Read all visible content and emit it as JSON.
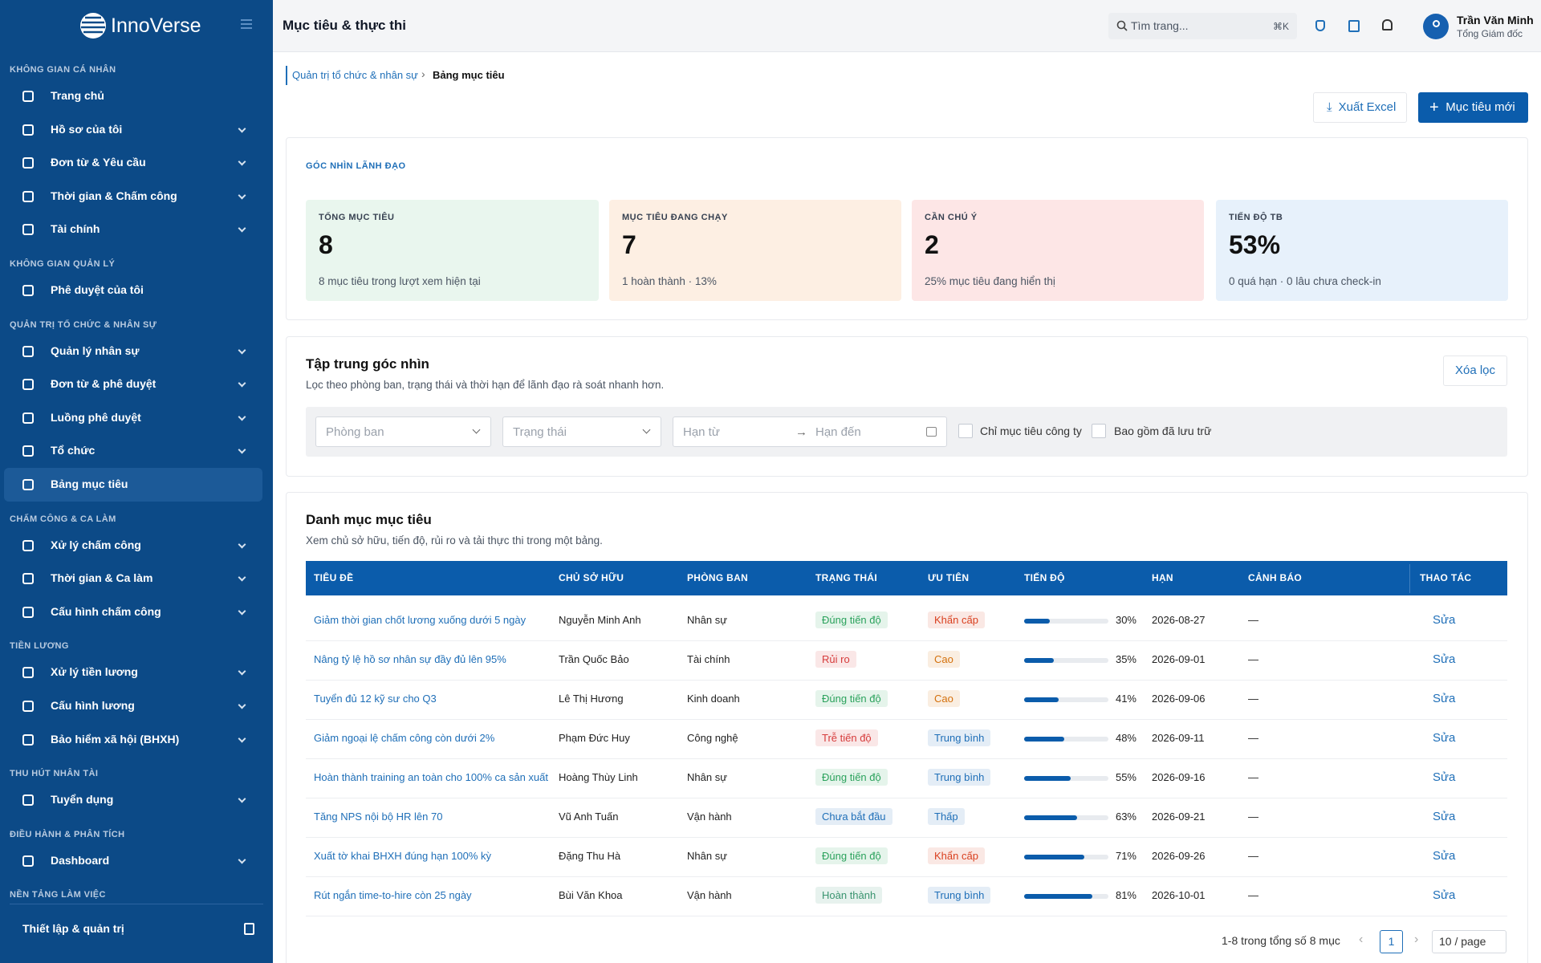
{
  "sidebar": {
    "brand": "InnoVerse",
    "sections": [
      {
        "label": "KHÔNG GIAN CÁ NHÂN",
        "items": [
          {
            "label": "Trang chủ",
            "has_submenu": false
          },
          {
            "label": "Hồ sơ của tôi",
            "has_submenu": true
          },
          {
            "label": "Đơn từ & Yêu cầu",
            "has_submenu": true
          },
          {
            "label": "Thời gian & Chấm công",
            "has_submenu": true
          },
          {
            "label": "Tài chính",
            "has_submenu": true
          }
        ]
      },
      {
        "label": "KHÔNG GIAN QUẢN LÝ",
        "items": [
          {
            "label": "Phê duyệt của tôi",
            "has_submenu": false
          }
        ]
      },
      {
        "label": "QUẢN TRỊ TỔ CHỨC & NHÂN SỰ",
        "items": [
          {
            "label": "Quản lý nhân sự",
            "has_submenu": true
          },
          {
            "label": "Đơn từ & phê duyệt",
            "has_submenu": true
          },
          {
            "label": "Luồng phê duyệt",
            "has_submenu": true
          },
          {
            "label": "Tổ chức",
            "has_submenu": true
          },
          {
            "label": "Bảng mục tiêu",
            "has_submenu": false,
            "active": true
          }
        ]
      },
      {
        "label": "CHẤM CÔNG & CA LÀM",
        "items": [
          {
            "label": "Xử lý chấm công",
            "has_submenu": true
          },
          {
            "label": "Thời gian & Ca làm",
            "has_submenu": true
          },
          {
            "label": "Cấu hình chấm công",
            "has_submenu": true
          }
        ]
      },
      {
        "label": "TIỀN LƯƠNG",
        "items": [
          {
            "label": "Xử lý tiền lương",
            "has_submenu": true
          },
          {
            "label": "Cấu hình lương",
            "has_submenu": true
          },
          {
            "label": "Bảo hiểm xã hội (BHXH)",
            "has_submenu": true
          }
        ]
      },
      {
        "label": "THU HÚT NHÂN TÀI",
        "items": [
          {
            "label": "Tuyển dụng",
            "has_submenu": true
          }
        ]
      },
      {
        "label": "ĐIỀU HÀNH & PHÂN TÍCH",
        "items": [
          {
            "label": "Dashboard",
            "has_submenu": true
          }
        ]
      },
      {
        "label": "NỀN TẢNG LÀM VIỆC",
        "items": []
      }
    ],
    "footer": "Thiết lập & quản trị"
  },
  "header": {
    "title": "Mục tiêu & thực thi",
    "search": "Tìm trang...",
    "shortcut": "⌘K",
    "user_name": "Trần Văn Minh",
    "user_role": "Tổng Giám đốc"
  },
  "breadcrumb": [
    "Quản trị tổ chức & nhân sự",
    "Bảng mục tiêu"
  ],
  "actions": {
    "export": "Xuất Excel",
    "create": "Mục tiêu mới"
  },
  "overview": {
    "title": "GÓC NHÌN LÃNH ĐẠO",
    "kpis": [
      {
        "label": "TỔNG MỤC TIÊU",
        "value": "8",
        "note": "8 mục tiêu trong lượt xem hiện tại",
        "color": "#e9f6ee"
      },
      {
        "label": "MỤC TIÊU ĐANG CHẠY",
        "value": "7",
        "note": "1 hoàn thành · 13%",
        "color": "#fdefe3"
      },
      {
        "label": "CẦN CHÚ Ý",
        "value": "2",
        "note": "25% mục tiêu đang hiển thị",
        "color": "#fde6e6"
      },
      {
        "label": "TIẾN ĐỘ TB",
        "value": "53%",
        "note": "0 quá hạn · 0 lâu chưa check-in",
        "color": "#e7f1fb"
      }
    ]
  },
  "filters": {
    "title": "Tập trung góc nhìn",
    "subtitle": "Lọc theo phòng ban, trạng thái và thời hạn để lãnh đạo rà soát nhanh hơn.",
    "clear": "Xóa lọc",
    "department": "Phòng ban",
    "status": "Trạng thái",
    "date_from": "Hạn từ",
    "date_to": "Hạn đến",
    "company_only": "Chỉ mục tiêu công ty",
    "include_archived": "Bao gồm đã lưu trữ"
  },
  "table": {
    "title": "Danh mục mục tiêu",
    "subtitle": "Xem chủ sở hữu, tiến độ, rủi ro và tải thực thi trong một bảng.",
    "columns": [
      "TIÊU ĐỀ",
      "CHỦ SỞ HỮU",
      "PHÒNG BAN",
      "TRẠNG THÁI",
      "ƯU TIÊN",
      "TIẾN ĐỘ",
      "HẠN",
      "CẢNH BÁO",
      "THAO TÁC"
    ],
    "rows": [
      {
        "title": "Giảm thời gian chốt lương xuống dưới 5 ngày",
        "owner": "Nguyễn Minh Anh",
        "department": "Nhân sự",
        "status": "Đúng tiến độ",
        "status_color": "#2ba25c",
        "priority": "Khẩn cấp",
        "priority_color": "#d9401f",
        "progress": 30,
        "progress_label": "30%",
        "due": "2026-08-27",
        "warning": "—",
        "action": "Sửa"
      },
      {
        "title": "Nâng tỷ lệ hồ sơ nhân sự đầy đủ lên 95%",
        "owner": "Trần Quốc Bảo",
        "department": "Tài chính",
        "status": "Rủi ro",
        "status_color": "#d63b3b",
        "priority": "Cao",
        "priority_color": "#d4700c",
        "progress": 35,
        "progress_label": "35%",
        "due": "2026-09-01",
        "warning": "—",
        "action": "Sửa"
      },
      {
        "title": "Tuyển đủ 12 kỹ sư cho Q3",
        "owner": "Lê Thị Hương",
        "department": "Kinh doanh",
        "status": "Đúng tiến độ",
        "status_color": "#2ba25c",
        "priority": "Cao",
        "priority_color": "#d4700c",
        "progress": 41,
        "progress_label": "41%",
        "due": "2026-09-06",
        "warning": "—",
        "action": "Sửa"
      },
      {
        "title": "Giảm ngoại lệ chấm công còn dưới 2%",
        "owner": "Phạm Đức Huy",
        "department": "Công nghệ",
        "status": "Trễ tiến độ",
        "status_color": "#d63b3b",
        "priority": "Trung bình",
        "priority_color": "#1f6fb8",
        "progress": 48,
        "progress_label": "48%",
        "due": "2026-09-11",
        "warning": "—",
        "action": "Sửa"
      },
      {
        "title": "Hoàn thành training an toàn cho 100% ca sản xuất",
        "owner": "Hoàng Thùy Linh",
        "department": "Nhân sự",
        "status": "Đúng tiến độ",
        "status_color": "#2ba25c",
        "priority": "Trung bình",
        "priority_color": "#1f6fb8",
        "progress": 55,
        "progress_label": "55%",
        "due": "2026-09-16",
        "warning": "—",
        "action": "Sửa"
      },
      {
        "title": "Tăng NPS nội bộ HR lên 70",
        "owner": "Vũ Anh Tuấn",
        "department": "Vận hành",
        "status": "Chưa bắt đầu",
        "status_color": "#1f6fb8",
        "priority": "Thấp",
        "priority_color": "#1f6fb8",
        "progress": 63,
        "progress_label": "63%",
        "due": "2026-09-21",
        "warning": "—",
        "action": "Sửa"
      },
      {
        "title": "Xuất tờ khai BHXH đúng hạn 100% kỳ",
        "owner": "Đặng Thu Hà",
        "department": "Nhân sự",
        "status": "Đúng tiến độ",
        "status_color": "#2ba25c",
        "priority": "Khẩn cấp",
        "priority_color": "#d9401f",
        "progress": 71,
        "progress_label": "71%",
        "due": "2026-09-26",
        "warning": "—",
        "action": "Sửa"
      },
      {
        "title": "Rút ngắn time-to-hire còn 25 ngày",
        "owner": "Bùi Văn Khoa",
        "department": "Vận hành",
        "status": "Hoàn thành",
        "status_color": "#3a9470",
        "priority": "Trung bình",
        "priority_color": "#1f6fb8",
        "progress": 81,
        "progress_label": "81%",
        "due": "2026-10-01",
        "warning": "—",
        "action": "Sửa"
      }
    ],
    "pagination": {
      "summary": "1-8 trong tổng số 8 mục",
      "page": "1",
      "page_size": "10 / page"
    }
  }
}
